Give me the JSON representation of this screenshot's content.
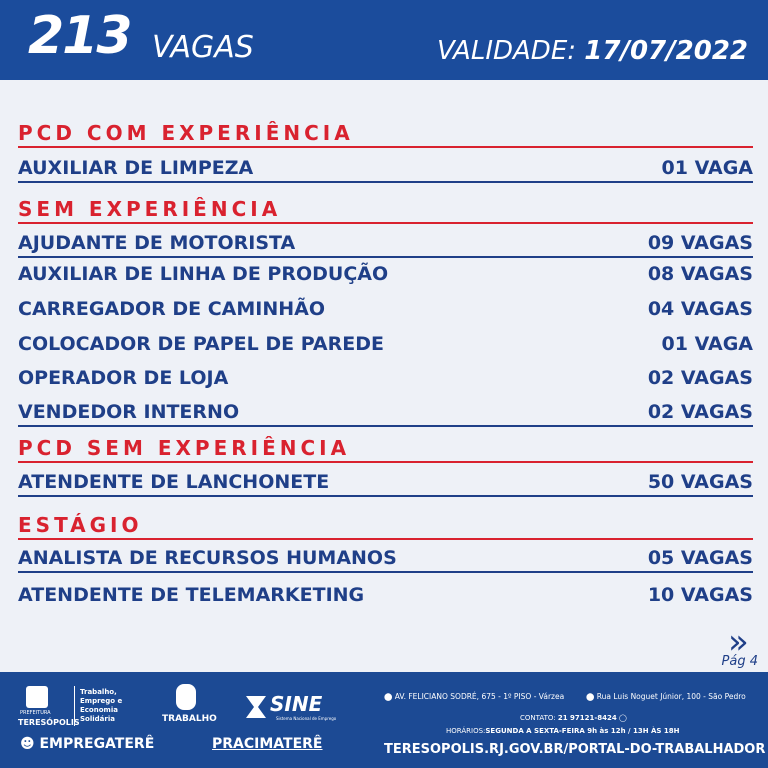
{
  "header": {
    "count": "213",
    "count_label": "VAGAS",
    "validity_label": "VALIDADE:",
    "validity_date": "17/07/2022"
  },
  "sections": [
    {
      "title": "PCD COM EXPERIÊNCIA",
      "rows": [
        {
          "job": "AUXILIAR DE LIMPEZA",
          "qty": "01 VAGA"
        }
      ]
    },
    {
      "title": "SEM EXPERIÊNCIA",
      "rows": [
        {
          "job": "AJUDANTE DE MOTORISTA",
          "qty": "09 VAGAS"
        },
        {
          "job": "AUXILIAR DE LINHA DE PRODUÇÃO",
          "qty": "08 VAGAS"
        },
        {
          "job": "CARREGADOR DE CAMINHÃO",
          "qty": "04 VAGAS"
        },
        {
          "job": "COLOCADOR DE PAPEL DE PAREDE",
          "qty": "01 VAGA"
        },
        {
          "job": "OPERADOR DE LOJA",
          "qty": "02 VAGAS"
        },
        {
          "job": "VENDEDOR INTERNO",
          "qty": "02 VAGAS"
        }
      ]
    },
    {
      "title": "PCD SEM EXPERIÊNCIA",
      "rows": [
        {
          "job": "ATENDENTE DE  LANCHONETE",
          "qty": "50 VAGAS"
        }
      ]
    },
    {
      "title": "ESTÁGIO",
      "rows": [
        {
          "job": "ANALISTA DE RECURSOS HUMANOS",
          "qty": "05 VAGAS"
        },
        {
          "job": "ATENDENTE DE TELEMARKETING",
          "qty": "10 VAGAS"
        }
      ]
    }
  ],
  "pagination": {
    "next_icon": "double-chevron-right",
    "page": "Pág 4"
  },
  "footer": {
    "prefeitura": "PREFEITURA",
    "city": "TERESÓPOLIS",
    "dept": "Trabalho, Emprego e Economia Solidária",
    "trabalho": "TRABALHO",
    "sine": "SINE",
    "sine_sub": "Sistema Nacional de Emprego",
    "empregatere": "EMPREGATERÊ",
    "pracimatere": "PRACIMATERÊ",
    "address1": "AV. FELICIANO SODRÉ, 675 - 1º PISO - Várzea",
    "address2": "Rua Luis Noguet Júnior, 100 - São Pedro",
    "contact_label": "CONTATO:",
    "contact": "21 97121-8424",
    "hours_label": "HORÁRIOS:",
    "hours": "SEGUNDA A SEXTA-FEIRA  9h às 12h / 13H ÀS 18H",
    "url": "TERESOPOLIS.RJ.GOV.BR/PORTAL-DO-TRABALHADOR"
  },
  "colors": {
    "header": "#1b4c9c",
    "section": "#d9222f",
    "text": "#1f3f88",
    "background": "#eef1f7"
  }
}
